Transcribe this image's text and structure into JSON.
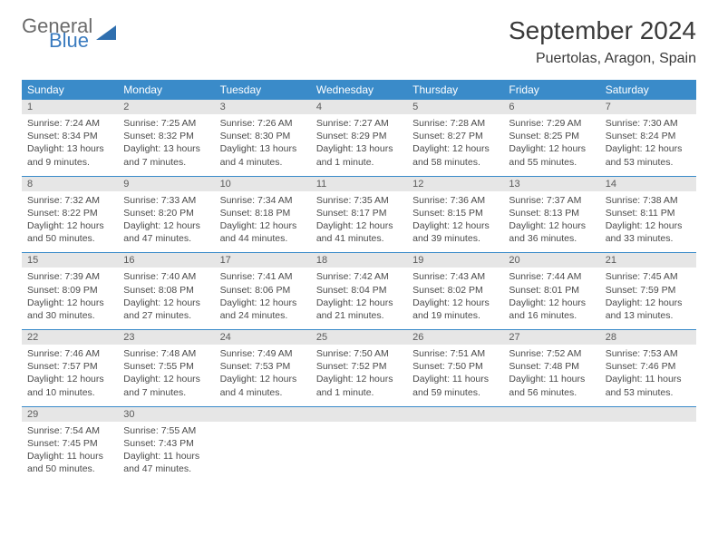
{
  "logo": {
    "general": "General",
    "blue": "Blue"
  },
  "title": "September 2024",
  "location": "Puertolas, Aragon, Spain",
  "colors": {
    "accent": "#3a8bc9",
    "logo_blue": "#3a7bbf",
    "gray_bar": "#e6e6e6",
    "text": "#3a3a3a"
  },
  "day_names": [
    "Sunday",
    "Monday",
    "Tuesday",
    "Wednesday",
    "Thursday",
    "Friday",
    "Saturday"
  ],
  "weeks": [
    [
      {
        "num": "1",
        "sunrise": "7:24 AM",
        "sunset": "8:34 PM",
        "daylight": "13 hours and 9 minutes."
      },
      {
        "num": "2",
        "sunrise": "7:25 AM",
        "sunset": "8:32 PM",
        "daylight": "13 hours and 7 minutes."
      },
      {
        "num": "3",
        "sunrise": "7:26 AM",
        "sunset": "8:30 PM",
        "daylight": "13 hours and 4 minutes."
      },
      {
        "num": "4",
        "sunrise": "7:27 AM",
        "sunset": "8:29 PM",
        "daylight": "13 hours and 1 minute."
      },
      {
        "num": "5",
        "sunrise": "7:28 AM",
        "sunset": "8:27 PM",
        "daylight": "12 hours and 58 minutes."
      },
      {
        "num": "6",
        "sunrise": "7:29 AM",
        "sunset": "8:25 PM",
        "daylight": "12 hours and 55 minutes."
      },
      {
        "num": "7",
        "sunrise": "7:30 AM",
        "sunset": "8:24 PM",
        "daylight": "12 hours and 53 minutes."
      }
    ],
    [
      {
        "num": "8",
        "sunrise": "7:32 AM",
        "sunset": "8:22 PM",
        "daylight": "12 hours and 50 minutes."
      },
      {
        "num": "9",
        "sunrise": "7:33 AM",
        "sunset": "8:20 PM",
        "daylight": "12 hours and 47 minutes."
      },
      {
        "num": "10",
        "sunrise": "7:34 AM",
        "sunset": "8:18 PM",
        "daylight": "12 hours and 44 minutes."
      },
      {
        "num": "11",
        "sunrise": "7:35 AM",
        "sunset": "8:17 PM",
        "daylight": "12 hours and 41 minutes."
      },
      {
        "num": "12",
        "sunrise": "7:36 AM",
        "sunset": "8:15 PM",
        "daylight": "12 hours and 39 minutes."
      },
      {
        "num": "13",
        "sunrise": "7:37 AM",
        "sunset": "8:13 PM",
        "daylight": "12 hours and 36 minutes."
      },
      {
        "num": "14",
        "sunrise": "7:38 AM",
        "sunset": "8:11 PM",
        "daylight": "12 hours and 33 minutes."
      }
    ],
    [
      {
        "num": "15",
        "sunrise": "7:39 AM",
        "sunset": "8:09 PM",
        "daylight": "12 hours and 30 minutes."
      },
      {
        "num": "16",
        "sunrise": "7:40 AM",
        "sunset": "8:08 PM",
        "daylight": "12 hours and 27 minutes."
      },
      {
        "num": "17",
        "sunrise": "7:41 AM",
        "sunset": "8:06 PM",
        "daylight": "12 hours and 24 minutes."
      },
      {
        "num": "18",
        "sunrise": "7:42 AM",
        "sunset": "8:04 PM",
        "daylight": "12 hours and 21 minutes."
      },
      {
        "num": "19",
        "sunrise": "7:43 AM",
        "sunset": "8:02 PM",
        "daylight": "12 hours and 19 minutes."
      },
      {
        "num": "20",
        "sunrise": "7:44 AM",
        "sunset": "8:01 PM",
        "daylight": "12 hours and 16 minutes."
      },
      {
        "num": "21",
        "sunrise": "7:45 AM",
        "sunset": "7:59 PM",
        "daylight": "12 hours and 13 minutes."
      }
    ],
    [
      {
        "num": "22",
        "sunrise": "7:46 AM",
        "sunset": "7:57 PM",
        "daylight": "12 hours and 10 minutes."
      },
      {
        "num": "23",
        "sunrise": "7:48 AM",
        "sunset": "7:55 PM",
        "daylight": "12 hours and 7 minutes."
      },
      {
        "num": "24",
        "sunrise": "7:49 AM",
        "sunset": "7:53 PM",
        "daylight": "12 hours and 4 minutes."
      },
      {
        "num": "25",
        "sunrise": "7:50 AM",
        "sunset": "7:52 PM",
        "daylight": "12 hours and 1 minute."
      },
      {
        "num": "26",
        "sunrise": "7:51 AM",
        "sunset": "7:50 PM",
        "daylight": "11 hours and 59 minutes."
      },
      {
        "num": "27",
        "sunrise": "7:52 AM",
        "sunset": "7:48 PM",
        "daylight": "11 hours and 56 minutes."
      },
      {
        "num": "28",
        "sunrise": "7:53 AM",
        "sunset": "7:46 PM",
        "daylight": "11 hours and 53 minutes."
      }
    ],
    [
      {
        "num": "29",
        "sunrise": "7:54 AM",
        "sunset": "7:45 PM",
        "daylight": "11 hours and 50 minutes."
      },
      {
        "num": "30",
        "sunrise": "7:55 AM",
        "sunset": "7:43 PM",
        "daylight": "11 hours and 47 minutes."
      },
      null,
      null,
      null,
      null,
      null
    ]
  ],
  "labels": {
    "sunrise_prefix": "Sunrise: ",
    "sunset_prefix": "Sunset: ",
    "daylight_prefix": "Daylight: "
  }
}
